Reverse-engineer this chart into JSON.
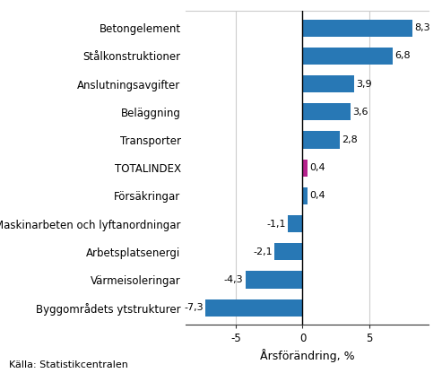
{
  "categories": [
    "Byggområdets ytstrukturer",
    "Värmeisoleringar",
    "Arbetsplatsenergi",
    "Maskinarbeten och lyftanordningar",
    "Försäkringar",
    "TOTALINDEX",
    "Transporter",
    "Beläggning",
    "Anslutningsavgifter",
    "Stålkonstruktioner",
    "Betongelement"
  ],
  "values": [
    -7.3,
    -4.3,
    -2.1,
    -1.1,
    0.4,
    0.4,
    2.8,
    3.6,
    3.9,
    6.8,
    8.3
  ],
  "bar_colors": [
    "#2878b5",
    "#2878b5",
    "#2878b5",
    "#2878b5",
    "#2878b5",
    "#b5228c",
    "#2878b5",
    "#2878b5",
    "#2878b5",
    "#2878b5",
    "#2878b5"
  ],
  "xlabel": "Årsförändring, %",
  "xlim": [
    -8.8,
    9.5
  ],
  "xticks": [
    -5,
    0,
    5
  ],
  "source_text": "Källa: Statistikcentralen",
  "value_fontsize": 8,
  "label_fontsize": 8.5,
  "xlabel_fontsize": 9,
  "source_fontsize": 8,
  "bar_height": 0.62,
  "background_color": "#ffffff",
  "grid_color": "#cccccc",
  "spine_color": "#333333"
}
